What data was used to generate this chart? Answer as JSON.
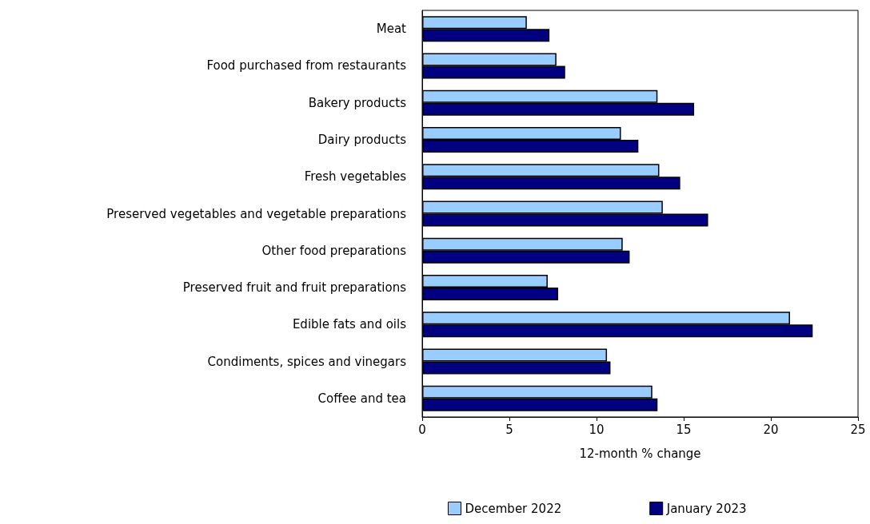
{
  "chart_data": {
    "type": "bar",
    "orientation": "horizontal",
    "xlabel": "12-month % change",
    "categories": [
      "Meat",
      "Food purchased from restaurants",
      "Bakery products",
      "Dairy products",
      "Fresh vegetables",
      "Preserved vegetables and vegetable preparations",
      "Other food preparations",
      "Preserved fruit and fruit preparations",
      "Edible fats and oils",
      "Condiments, spices and vinegars",
      "Coffee and tea"
    ],
    "series": [
      {
        "name": "December 2022",
        "color": "#99ccff",
        "values": [
          6.0,
          7.7,
          13.5,
          11.4,
          13.6,
          13.8,
          11.5,
          7.2,
          21.1,
          10.6,
          13.2
        ]
      },
      {
        "name": "January 2023",
        "color": "#000080",
        "values": [
          7.3,
          8.2,
          15.6,
          12.4,
          14.8,
          16.4,
          11.9,
          7.8,
          22.4,
          10.8,
          13.5
        ]
      }
    ],
    "xlim": [
      0,
      25
    ],
    "xticks": [
      0,
      5,
      10,
      15,
      20,
      25
    ],
    "grid": false,
    "legend": "bottom"
  }
}
